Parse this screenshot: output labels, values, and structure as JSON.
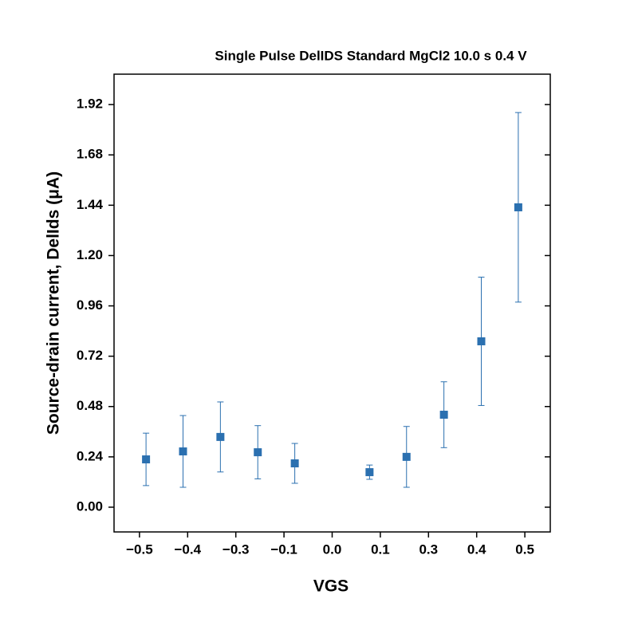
{
  "chart_data": {
    "type": "scatter",
    "title": "Single Pulse DelIDS Standard MgCl2 10.0 s 0.4 V",
    "x_label": "VGS",
    "y_label": "Source-drain current, DelIds (μA)",
    "color": "#2b70b0",
    "x": [
      -0.483,
      -0.387,
      -0.29,
      -0.193,
      -0.097,
      0.097,
      0.193,
      0.29,
      0.387,
      0.483
    ],
    "values": [
      0.228,
      0.266,
      0.335,
      0.262,
      0.209,
      0.167,
      0.24,
      0.441,
      0.791,
      1.43
    ],
    "errors": [
      0.125,
      0.171,
      0.167,
      0.127,
      0.095,
      0.034,
      0.145,
      0.157,
      0.306,
      0.452
    ],
    "xlim": [
      -0.566,
      0.566
    ],
    "ylim": [
      -0.118,
      2.065
    ],
    "xticks": [
      {
        "value": -0.5,
        "label": "−0.5"
      },
      {
        "value": -0.375,
        "label": "−0.4"
      },
      {
        "value": -0.25,
        "label": "−0.3"
      },
      {
        "value": -0.125,
        "label": "−0.1"
      },
      {
        "value": 0,
        "label": "0.0"
      },
      {
        "value": 0.125,
        "label": "0.1"
      },
      {
        "value": 0.25,
        "label": "0.3"
      },
      {
        "value": 0.375,
        "label": "0.4"
      },
      {
        "value": 0.5,
        "label": "0.5"
      }
    ],
    "yticks": [
      {
        "value": 0,
        "label": "0.00"
      },
      {
        "value": 0.24,
        "label": "0.24"
      },
      {
        "value": 0.48,
        "label": "0.48"
      },
      {
        "value": 0.72,
        "label": "0.72"
      },
      {
        "value": 0.96,
        "label": "0.96"
      },
      {
        "value": 1.2,
        "label": "1.20"
      },
      {
        "value": 1.44,
        "label": "1.44"
      },
      {
        "value": 1.68,
        "label": "1.68"
      },
      {
        "value": 1.92,
        "label": "1.92"
      }
    ],
    "grid": false
  }
}
